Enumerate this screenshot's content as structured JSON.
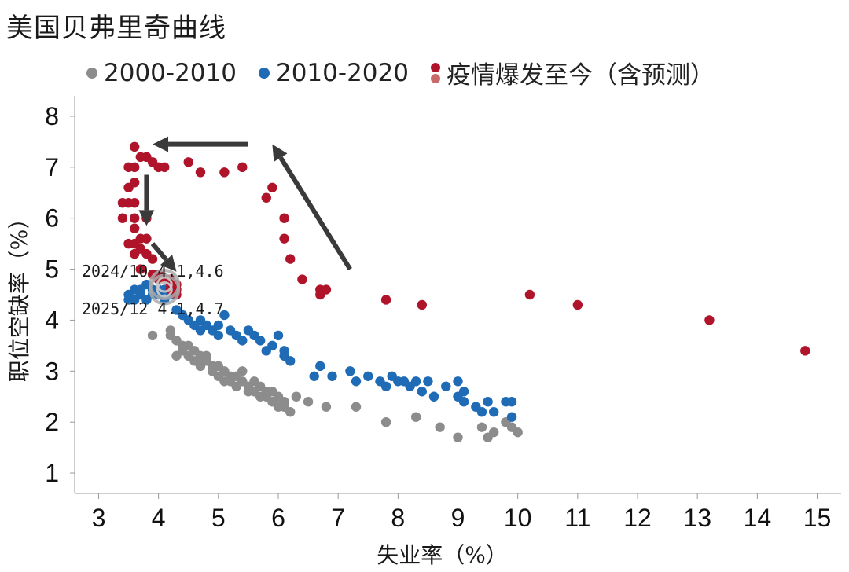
{
  "chart_data": {
    "type": "scatter",
    "title": "美国贝弗里奇曲线",
    "xlabel": "失业率（%）",
    "ylabel": "职位空缺率（%）",
    "xlim": [
      2.6,
      15.4
    ],
    "ylim": [
      0.6,
      8.4
    ],
    "xticks": [
      3,
      4,
      5,
      6,
      7,
      8,
      9,
      10,
      11,
      12,
      13,
      14,
      15
    ],
    "yticks": [
      1,
      2,
      3,
      4,
      5,
      6,
      7,
      8
    ],
    "grid": false,
    "legend_position": "top",
    "series": [
      {
        "name": "2000-2010",
        "color": "#8c8c8c",
        "points": [
          [
            3.9,
            3.7
          ],
          [
            4.2,
            3.7
          ],
          [
            4.2,
            3.8
          ],
          [
            4.3,
            3.6
          ],
          [
            4.3,
            3.3
          ],
          [
            4.4,
            3.5
          ],
          [
            4.4,
            3.4
          ],
          [
            4.5,
            3.5
          ],
          [
            4.5,
            3.3
          ],
          [
            4.6,
            3.2
          ],
          [
            4.6,
            3.4
          ],
          [
            4.7,
            3.3
          ],
          [
            4.7,
            3.1
          ],
          [
            4.8,
            3.2
          ],
          [
            4.8,
            3.3
          ],
          [
            4.9,
            3.1
          ],
          [
            4.9,
            3.0
          ],
          [
            5.0,
            3.1
          ],
          [
            5.0,
            2.9
          ],
          [
            5.1,
            2.8
          ],
          [
            5.1,
            3.0
          ],
          [
            5.2,
            2.9
          ],
          [
            5.2,
            2.8
          ],
          [
            5.3,
            2.9
          ],
          [
            5.3,
            2.7
          ],
          [
            5.4,
            2.8
          ],
          [
            5.4,
            3.0
          ],
          [
            5.5,
            2.7
          ],
          [
            5.5,
            2.6
          ],
          [
            5.6,
            2.8
          ],
          [
            5.6,
            2.6
          ],
          [
            5.7,
            2.5
          ],
          [
            5.7,
            2.7
          ],
          [
            5.8,
            2.6
          ],
          [
            5.8,
            2.5
          ],
          [
            5.9,
            2.4
          ],
          [
            5.9,
            2.6
          ],
          [
            6.0,
            2.5
          ],
          [
            6.0,
            2.3
          ],
          [
            6.1,
            2.4
          ],
          [
            6.1,
            2.3
          ],
          [
            6.2,
            2.2
          ],
          [
            6.3,
            2.5
          ],
          [
            6.5,
            2.4
          ],
          [
            6.8,
            2.3
          ],
          [
            7.3,
            2.3
          ],
          [
            7.8,
            2.0
          ],
          [
            8.3,
            2.1
          ],
          [
            8.7,
            1.9
          ],
          [
            9.0,
            1.7
          ],
          [
            9.4,
            1.9
          ],
          [
            9.5,
            1.7
          ],
          [
            9.6,
            1.8
          ],
          [
            9.8,
            2.0
          ],
          [
            9.9,
            1.9
          ],
          [
            10.0,
            1.8
          ]
        ]
      },
      {
        "name": "2010-2020",
        "color": "#1f6bb5",
        "points": [
          [
            3.5,
            4.4
          ],
          [
            3.5,
            4.5
          ],
          [
            3.6,
            4.4
          ],
          [
            3.6,
            4.6
          ],
          [
            3.7,
            4.5
          ],
          [
            3.7,
            4.6
          ],
          [
            3.8,
            4.7
          ],
          [
            3.8,
            4.4
          ],
          [
            3.9,
            4.6
          ],
          [
            3.9,
            4.5
          ],
          [
            4.0,
            4.6
          ],
          [
            4.0,
            4.5
          ],
          [
            4.1,
            4.4
          ],
          [
            4.1,
            4.6
          ],
          [
            4.2,
            4.5
          ],
          [
            4.3,
            4.2
          ],
          [
            4.4,
            4.1
          ],
          [
            4.5,
            4.0
          ],
          [
            4.6,
            3.9
          ],
          [
            4.7,
            4.0
          ],
          [
            4.7,
            3.8
          ],
          [
            4.8,
            3.9
          ],
          [
            4.9,
            3.8
          ],
          [
            5.0,
            3.7
          ],
          [
            5.0,
            3.9
          ],
          [
            5.1,
            4.1
          ],
          [
            5.2,
            3.8
          ],
          [
            5.3,
            3.7
          ],
          [
            5.4,
            3.6
          ],
          [
            5.5,
            3.8
          ],
          [
            5.6,
            3.7
          ],
          [
            5.7,
            3.6
          ],
          [
            5.8,
            3.4
          ],
          [
            5.9,
            3.5
          ],
          [
            6.0,
            3.7
          ],
          [
            6.1,
            3.4
          ],
          [
            6.1,
            3.3
          ],
          [
            6.2,
            3.2
          ],
          [
            6.6,
            2.9
          ],
          [
            6.7,
            3.1
          ],
          [
            6.9,
            2.9
          ],
          [
            7.2,
            3.0
          ],
          [
            7.3,
            2.8
          ],
          [
            7.5,
            2.9
          ],
          [
            7.7,
            2.8
          ],
          [
            7.8,
            2.7
          ],
          [
            7.9,
            2.9
          ],
          [
            8.0,
            2.8
          ],
          [
            8.1,
            2.8
          ],
          [
            8.2,
            2.7
          ],
          [
            8.3,
            2.8
          ],
          [
            8.4,
            2.6
          ],
          [
            8.5,
            2.8
          ],
          [
            8.6,
            2.5
          ],
          [
            8.8,
            2.7
          ],
          [
            9.0,
            2.8
          ],
          [
            9.0,
            2.5
          ],
          [
            9.1,
            2.6
          ],
          [
            9.1,
            2.4
          ],
          [
            9.3,
            2.3
          ],
          [
            9.4,
            2.2
          ],
          [
            9.5,
            2.4
          ],
          [
            9.6,
            2.2
          ],
          [
            9.8,
            2.4
          ],
          [
            9.9,
            2.4
          ],
          [
            9.9,
            2.1
          ]
        ]
      },
      {
        "name": "疫情爆发至今（含预测）",
        "color": "#b0142a",
        "points": [
          [
            14.8,
            3.4
          ],
          [
            13.2,
            4.0
          ],
          [
            11.0,
            4.3
          ],
          [
            10.2,
            4.5
          ],
          [
            8.4,
            4.3
          ],
          [
            7.8,
            4.4
          ],
          [
            6.8,
            4.6
          ],
          [
            6.7,
            4.5
          ],
          [
            6.7,
            4.6
          ],
          [
            6.4,
            4.8
          ],
          [
            6.2,
            5.2
          ],
          [
            6.1,
            5.6
          ],
          [
            6.1,
            6.0
          ],
          [
            5.9,
            6.6
          ],
          [
            5.8,
            6.4
          ],
          [
            5.4,
            7.0
          ],
          [
            5.1,
            6.9
          ],
          [
            4.7,
            6.9
          ],
          [
            4.5,
            7.1
          ],
          [
            4.1,
            7.0
          ],
          [
            4.0,
            7.0
          ],
          [
            3.9,
            7.1
          ],
          [
            3.8,
            7.2
          ],
          [
            3.7,
            7.2
          ],
          [
            3.6,
            7.4
          ],
          [
            3.5,
            7.0
          ],
          [
            3.6,
            7.0
          ],
          [
            3.6,
            6.7
          ],
          [
            3.5,
            6.6
          ],
          [
            3.5,
            6.3
          ],
          [
            3.6,
            6.3
          ],
          [
            3.4,
            6.3
          ],
          [
            3.4,
            6.0
          ],
          [
            3.6,
            6.0
          ],
          [
            3.8,
            6.0
          ],
          [
            3.6,
            5.8
          ],
          [
            3.7,
            5.6
          ],
          [
            3.8,
            5.6
          ],
          [
            3.6,
            5.5
          ],
          [
            3.5,
            5.5
          ],
          [
            3.6,
            5.3
          ],
          [
            3.7,
            5.4
          ],
          [
            3.8,
            5.3
          ],
          [
            3.9,
            5.2
          ],
          [
            3.7,
            5.0
          ],
          [
            3.9,
            4.9
          ],
          [
            4.0,
            4.9
          ],
          [
            4.0,
            4.8
          ],
          [
            4.1,
            4.8
          ],
          [
            4.2,
            4.8
          ],
          [
            4.2,
            4.6
          ],
          [
            4.3,
            4.6
          ],
          [
            4.3,
            4.5
          ],
          [
            4.2,
            4.7
          ],
          [
            4.3,
            4.7
          ]
        ]
      }
    ],
    "legend_dot_colors": {
      "pandemic_top": "#b0142a",
      "pandemic_bottom": "#c86a6a"
    },
    "highlight_points": [
      {
        "x": 4.1,
        "y": 4.6,
        "label": "2024/10  4.1,4.6"
      },
      {
        "x": 4.1,
        "y": 4.7,
        "label": "2025/12  4.1,4.7"
      }
    ],
    "arrows": [
      {
        "from": [
          5.5,
          7.45
        ],
        "to": [
          3.9,
          7.45
        ]
      },
      {
        "from": [
          3.8,
          6.85
        ],
        "to": [
          3.8,
          5.85
        ]
      },
      {
        "from": [
          3.9,
          5.5
        ],
        "to": [
          4.3,
          4.95
        ]
      },
      {
        "from": [
          7.2,
          5.0
        ],
        "to": [
          5.9,
          7.45
        ]
      }
    ]
  }
}
